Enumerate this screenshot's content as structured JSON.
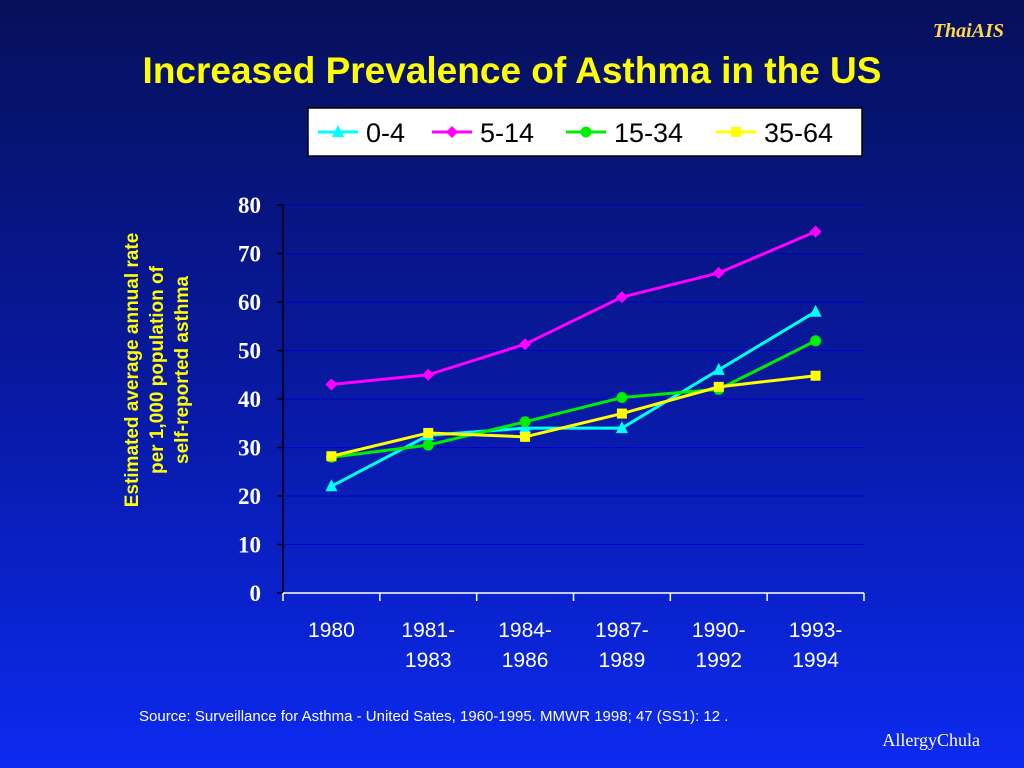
{
  "slide": {
    "brand_top": "ThaiAIS",
    "title": "Increased Prevalence of Asthma in the US",
    "source": "Source:  Surveillance for Asthma - United Sates, 1960-1995.  MMWR 1998; 47 (SS1): 12 .",
    "brand_bottom": "AllergyChula"
  },
  "chart_data": {
    "type": "line",
    "title": "",
    "ylabel_lines": [
      "Estimated average annual rate",
      "per 1,000 population of",
      "self-reported asthma"
    ],
    "xlabel": "",
    "categories": [
      [
        "1980"
      ],
      [
        "1981-",
        "1983"
      ],
      [
        "1984-",
        "1986"
      ],
      [
        "1987-",
        "1989"
      ],
      [
        "1990-",
        "1992"
      ],
      [
        "1993-",
        "1994"
      ]
    ],
    "ylim": [
      0,
      80
    ],
    "yticks": [
      0,
      10,
      20,
      30,
      40,
      50,
      60,
      70,
      80
    ],
    "grid": "horizontal",
    "legend_position": "top",
    "series": [
      {
        "name": "0-4",
        "marker": "triangle",
        "color": "#00ffff",
        "values": [
          22,
          32.5,
          34,
          34,
          46,
          58
        ]
      },
      {
        "name": "5-14",
        "marker": "diamond",
        "color": "#ff00ff",
        "values": [
          43,
          45,
          51.3,
          61,
          66,
          74.5
        ]
      },
      {
        "name": "15-34",
        "marker": "circle",
        "color": "#00ee00",
        "values": [
          28,
          30.5,
          35.3,
          40.3,
          42,
          52
        ]
      },
      {
        "name": "35-64",
        "marker": "square",
        "color": "#ffff00",
        "values": [
          28.2,
          33,
          32.2,
          37,
          42.5,
          44.8
        ]
      }
    ]
  }
}
